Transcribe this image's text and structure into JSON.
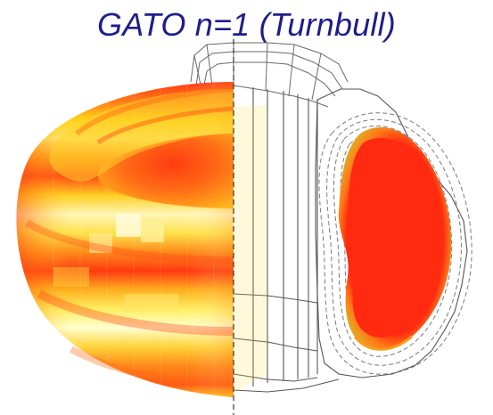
{
  "figure": {
    "title": "GATO n=1 (Turnbull)"
  },
  "colors": {
    "title_text": "#1e1e8a",
    "torus_hot": "#ff2a10",
    "torus_mid": "#ff8a1a",
    "torus_warm": "#ffd21a",
    "torus_pale": "#fff7b0",
    "mesh_line": "#555555",
    "flux_dashed": "#777777"
  }
}
